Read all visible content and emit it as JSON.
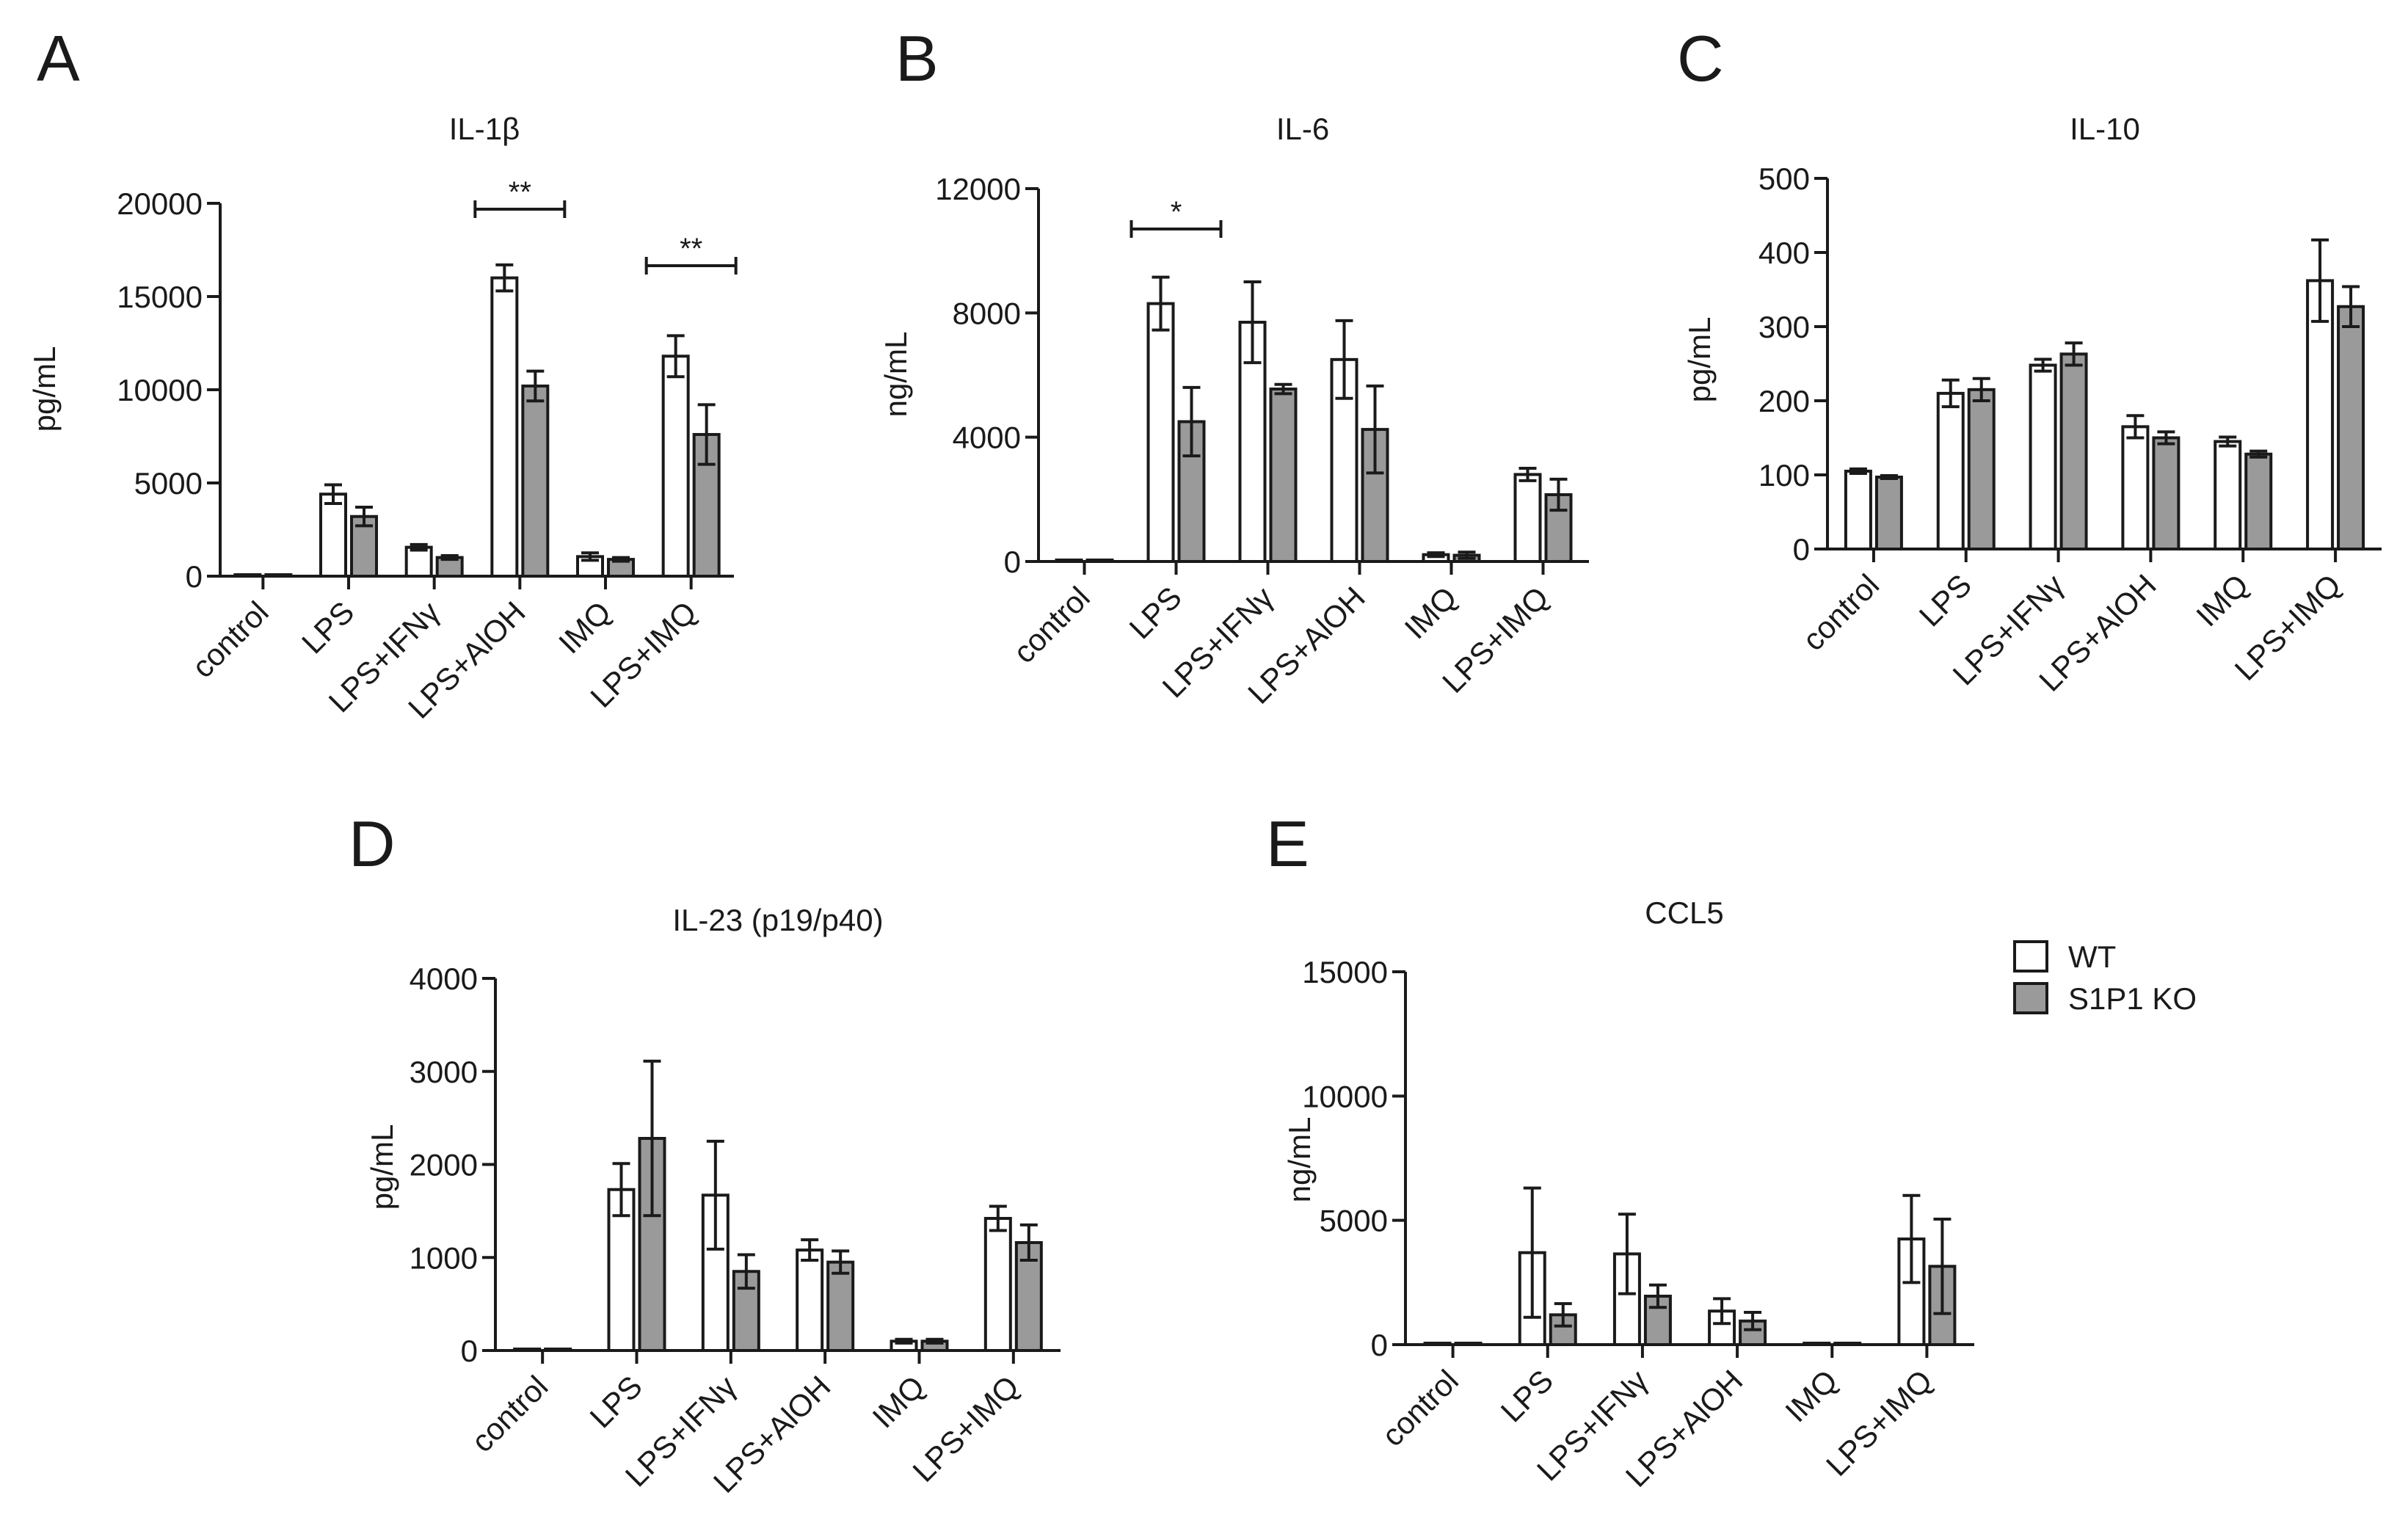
{
  "legend": [
    {
      "name": "WT",
      "color": "#ffffff"
    },
    {
      "name": "S1P1 KO",
      "color": "#9a9a9a"
    }
  ],
  "chart_data": [
    {
      "letter": "A",
      "type": "bar",
      "title": "IL-1β",
      "ylabel": "pg/mL",
      "ylim": [
        0,
        20000
      ],
      "yticks": [
        "0",
        "5000",
        "10000",
        "15000",
        "20000"
      ],
      "categories": [
        "control",
        "LPS",
        "LPS+IFNγ",
        "LPS+AlOH",
        "IMQ",
        "LPS+IMQ"
      ],
      "series": [
        {
          "name": "WT",
          "values": [
            80,
            4400,
            1550,
            16000,
            1050,
            11800
          ],
          "errors": [
            0,
            500,
            150,
            700,
            200,
            1100
          ]
        },
        {
          "name": "S1P1 KO",
          "values": [
            60,
            3200,
            1000,
            10200,
            900,
            7600
          ],
          "errors": [
            0,
            500,
            100,
            800,
            100,
            1600
          ]
        }
      ],
      "annotations": [
        {
          "text": "**",
          "group": 3
        },
        {
          "text": "**",
          "group": 5
        }
      ]
    },
    {
      "letter": "B",
      "type": "bar",
      "title": "IL-6",
      "ylabel": "ng/mL",
      "ylim": [
        0,
        12000
      ],
      "yticks": [
        "0",
        "4000",
        "8000",
        "12000"
      ],
      "categories": [
        "control",
        "LPS",
        "LPS+IFNγ",
        "LPS+AlOH",
        "IMQ",
        "LPS+IMQ"
      ],
      "series": [
        {
          "name": "WT",
          "values": [
            0,
            8300,
            7700,
            6500,
            220,
            2800
          ],
          "errors": [
            0,
            850,
            1300,
            1250,
            60,
            200
          ]
        },
        {
          "name": "S1P1 KO",
          "values": [
            0,
            4500,
            5550,
            4250,
            200,
            2150
          ],
          "errors": [
            0,
            1100,
            150,
            1400,
            100,
            500
          ]
        }
      ],
      "annotations": [
        {
          "text": "*",
          "group": 1
        }
      ]
    },
    {
      "letter": "C",
      "type": "bar",
      "title": "IL-10",
      "ylabel": "pg/mL",
      "ylim": [
        0,
        500
      ],
      "yticks": [
        "0",
        "100",
        "200",
        "300",
        "400",
        "500"
      ],
      "categories": [
        "control",
        "LPS",
        "LPS+IFNγ",
        "LPS+AlOH",
        "IMQ",
        "LPS+IMQ"
      ],
      "series": [
        {
          "name": "WT",
          "values": [
            105,
            210,
            248,
            165,
            145,
            362
          ],
          "errors": [
            3,
            18,
            8,
            15,
            6,
            55
          ]
        },
        {
          "name": "S1P1 KO",
          "values": [
            97,
            215,
            263,
            150,
            128,
            327
          ],
          "errors": [
            2,
            15,
            15,
            8,
            4,
            27
          ]
        }
      ],
      "annotations": []
    },
    {
      "letter": "D",
      "type": "bar",
      "title": "IL-23 (p19/p40)",
      "ylabel": "pg/mL",
      "ylim": [
        0,
        4000
      ],
      "yticks": [
        "0",
        "1000",
        "2000",
        "3000",
        "4000"
      ],
      "categories": [
        "control",
        "LPS",
        "LPS+IFNγ",
        "LPS+AlOH",
        "IMQ",
        "LPS+IMQ"
      ],
      "series": [
        {
          "name": "WT",
          "values": [
            0,
            1730,
            1670,
            1080,
            100,
            1420
          ],
          "errors": [
            0,
            280,
            580,
            110,
            20,
            130
          ]
        },
        {
          "name": "S1P1 KO",
          "values": [
            0,
            2280,
            850,
            950,
            100,
            1160
          ],
          "errors": [
            0,
            830,
            180,
            120,
            20,
            190
          ]
        }
      ],
      "annotations": []
    },
    {
      "letter": "E",
      "type": "bar",
      "title": "CCL5",
      "ylabel": "ng/mL",
      "ylim": [
        0,
        15000
      ],
      "yticks": [
        "0",
        "5000",
        "10000",
        "15000"
      ],
      "categories": [
        "control",
        "LPS",
        "LPS+IFNγ",
        "LPS+AlOH",
        "IMQ",
        "LPS+IMQ"
      ],
      "series": [
        {
          "name": "WT",
          "values": [
            0,
            3700,
            3650,
            1350,
            0,
            4250
          ],
          "errors": [
            0,
            2600,
            1600,
            500,
            0,
            1750
          ]
        },
        {
          "name": "S1P1 KO",
          "values": [
            0,
            1200,
            1950,
            950,
            0,
            3150
          ],
          "errors": [
            0,
            450,
            450,
            350,
            0,
            1900
          ]
        }
      ],
      "annotations": []
    }
  ]
}
